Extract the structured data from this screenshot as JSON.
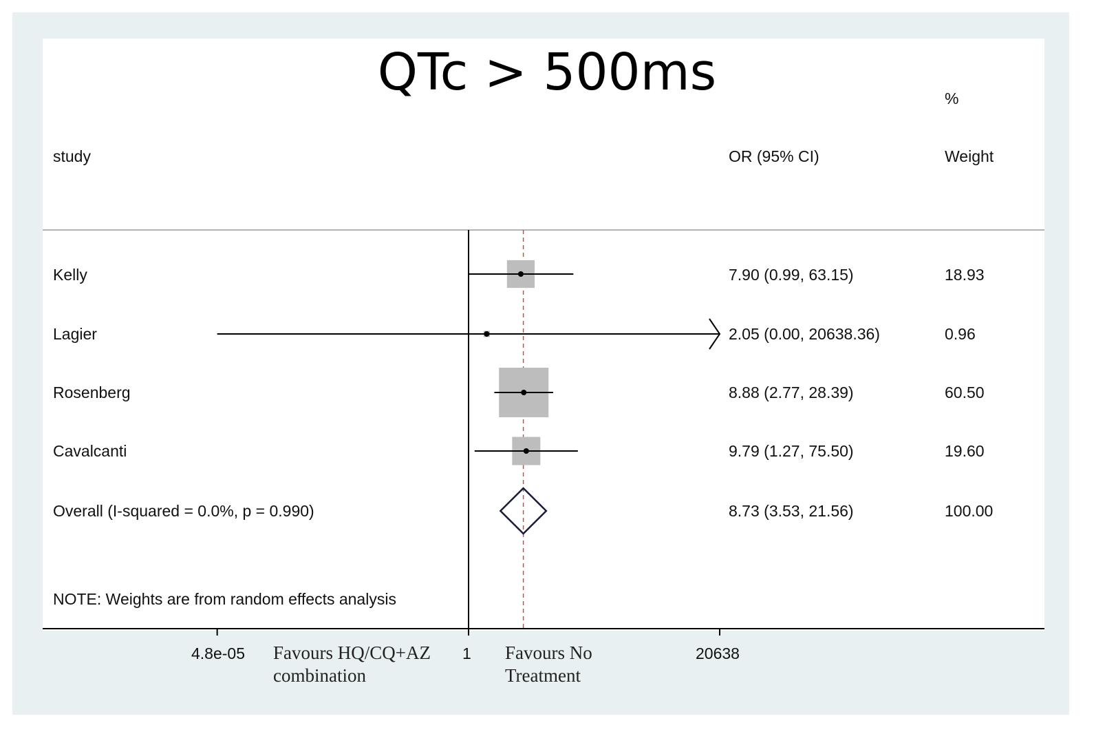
{
  "chart_data": {
    "type": "forest",
    "title": "QTc > 500ms",
    "columns": {
      "study": "study",
      "effect": "OR (95% CI)",
      "weight_pct": "%",
      "weight": "Weight"
    },
    "scale": "log",
    "reference_value": 1,
    "overall_line_value": 8.73,
    "xlim": [
      4.8e-05,
      20638
    ],
    "x_ticks": [
      {
        "value": 4.8e-05,
        "label": "4.8e-05"
      },
      {
        "value": 1,
        "label": "1"
      },
      {
        "value": 20638,
        "label": "20638"
      }
    ],
    "favours_left": "Favours HQ/CQ+AZ combination",
    "favours_right": "Favours No Treatment",
    "studies": [
      {
        "name": "Kelly",
        "or": 7.9,
        "lo": 0.99,
        "hi": 63.15,
        "ci_text": "7.90 (0.99, 63.15)",
        "weight": 18.93,
        "weight_text": "18.93"
      },
      {
        "name": "Lagier",
        "or": 2.05,
        "lo": 0.0,
        "hi": 20638.36,
        "ci_text": "2.05 (0.00, 20638.36)",
        "weight": 0.96,
        "weight_text": "0.96"
      },
      {
        "name": "Rosenberg",
        "or": 8.88,
        "lo": 2.77,
        "hi": 28.39,
        "ci_text": "8.88 (2.77, 28.39)",
        "weight": 60.5,
        "weight_text": "60.50"
      },
      {
        "name": "Cavalcanti",
        "or": 9.79,
        "lo": 1.27,
        "hi": 75.5,
        "ci_text": "9.79 (1.27, 75.50)",
        "weight": 19.6,
        "weight_text": "19.60"
      }
    ],
    "overall": {
      "name": "Overall  (I-squared = 0.0%, p = 0.990)",
      "or": 8.73,
      "lo": 3.53,
      "hi": 21.56,
      "ci_text": "8.73 (3.53, 21.56)",
      "weight_text": "100.00"
    },
    "note": "NOTE: Weights are from random effects analysis",
    "colors": {
      "box": "#bdbdbd",
      "line": "#000000",
      "diamond": "#1a1a3a",
      "dashed": "#a0605a",
      "frame": "#e8f0f2"
    }
  }
}
